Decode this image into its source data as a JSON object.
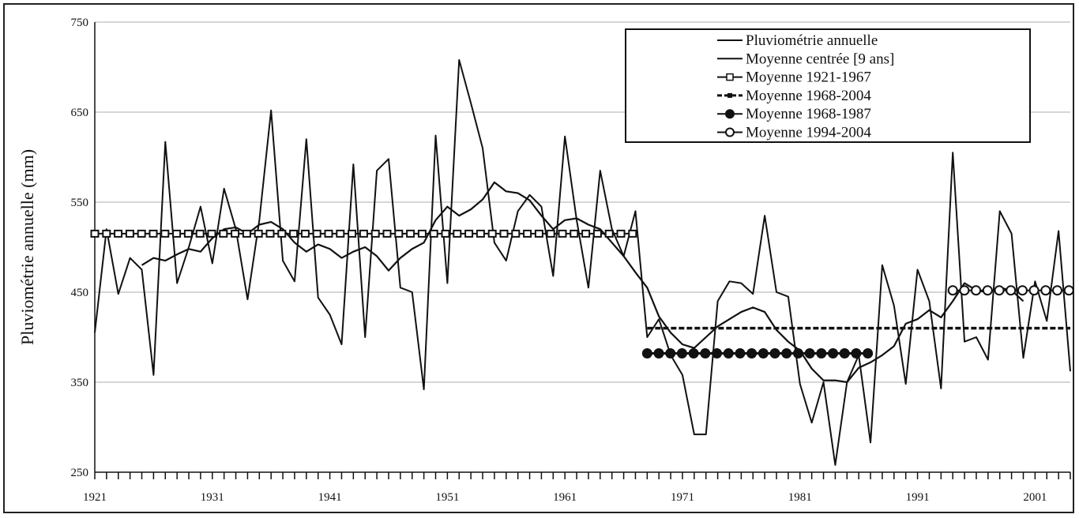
{
  "chart_data": {
    "type": "line",
    "title": "",
    "xlabel": "",
    "ylabel": "Pluviométrie annuelle (mm)",
    "xlim": [
      1921,
      2004
    ],
    "ylim": [
      250,
      750
    ],
    "yticks": [
      250,
      350,
      450,
      550,
      650,
      750
    ],
    "xticks": [
      1921,
      1931,
      1941,
      1951,
      1961,
      1971,
      1981,
      1991,
      2001
    ],
    "grid": "horizontal",
    "legend_position": "top-right",
    "series": [
      {
        "name": "Pluviométrie annuelle",
        "style": "solid-thin",
        "x": [
          1921,
          1922,
          1923,
          1924,
          1925,
          1926,
          1927,
          1928,
          1929,
          1930,
          1931,
          1932,
          1933,
          1934,
          1935,
          1936,
          1937,
          1938,
          1939,
          1940,
          1941,
          1942,
          1943,
          1944,
          1945,
          1946,
          1947,
          1948,
          1949,
          1950,
          1951,
          1952,
          1953,
          1954,
          1955,
          1956,
          1957,
          1958,
          1959,
          1960,
          1961,
          1962,
          1963,
          1964,
          1965,
          1966,
          1967,
          1968,
          1969,
          1970,
          1971,
          1972,
          1973,
          1974,
          1975,
          1976,
          1977,
          1978,
          1979,
          1980,
          1981,
          1982,
          1983,
          1984,
          1985,
          1986,
          1987,
          1988,
          1989,
          1990,
          1991,
          1992,
          1993,
          1994,
          1995,
          1996,
          1997,
          1998,
          1999,
          2000,
          2001,
          2002,
          2003,
          2004
        ],
        "values": [
          405,
          520,
          448,
          488,
          475,
          358,
          617,
          460,
          500,
          545,
          482,
          565,
          520,
          442,
          530,
          652,
          485,
          462,
          620,
          444,
          425,
          392,
          592,
          400,
          585,
          598,
          455,
          450,
          342,
          624,
          460,
          708,
          660,
          610,
          505,
          485,
          540,
          558,
          545,
          468,
          623,
          530,
          455,
          585,
          520,
          490,
          540,
          400,
          420,
          380,
          358,
          292,
          292,
          440,
          462,
          460,
          448,
          535,
          450,
          445,
          348,
          305,
          350,
          258,
          350,
          380,
          283,
          480,
          435,
          348,
          475,
          440,
          343,
          605,
          395,
          400,
          375,
          540,
          515,
          377,
          462,
          418,
          518,
          362
        ]
      },
      {
        "name": "Moyenne centrée [9 ans]",
        "style": "solid",
        "x": [
          1925,
          1926,
          1927,
          1928,
          1929,
          1930,
          1931,
          1932,
          1933,
          1934,
          1935,
          1936,
          1937,
          1938,
          1939,
          1940,
          1941,
          1942,
          1943,
          1944,
          1945,
          1946,
          1947,
          1948,
          1949,
          1950,
          1951,
          1952,
          1953,
          1954,
          1955,
          1956,
          1957,
          1958,
          1959,
          1960,
          1961,
          1962,
          1963,
          1964,
          1965,
          1966,
          1967,
          1968,
          1969,
          1970,
          1971,
          1972,
          1973,
          1974,
          1975,
          1976,
          1977,
          1978,
          1979,
          1980,
          1981,
          1982,
          1983,
          1984,
          1985,
          1986,
          1987,
          1988,
          1989,
          1990,
          1991,
          1992,
          1993,
          1994,
          1995,
          1996,
          1997,
          1998,
          1999,
          2000
        ],
        "values": [
          480,
          488,
          485,
          492,
          498,
          495,
          510,
          520,
          522,
          515,
          525,
          528,
          520,
          505,
          495,
          503,
          498,
          488,
          495,
          500,
          490,
          474,
          488,
          498,
          505,
          530,
          545,
          535,
          542,
          553,
          572,
          562,
          560,
          552,
          535,
          520,
          530,
          532,
          525,
          520,
          505,
          490,
          472,
          455,
          423,
          405,
          392,
          388,
          400,
          412,
          420,
          428,
          433,
          428,
          408,
          395,
          385,
          365,
          352,
          352,
          350,
          366,
          372,
          380,
          390,
          415,
          420,
          430,
          422,
          440,
          460,
          452,
          450,
          455,
          452,
          440
        ]
      },
      {
        "name": "Moyenne 1921-1967",
        "style": "dotted-square",
        "x": [
          1921,
          1967
        ],
        "values": [
          515,
          515
        ]
      },
      {
        "name": "Moyenne 1968-2004",
        "style": "dashed",
        "x": [
          1968,
          2004
        ],
        "values": [
          410,
          410
        ]
      },
      {
        "name": "Moyenne 1968-1987",
        "style": "filled-circle",
        "x": [
          1968,
          1987
        ],
        "values": [
          382,
          382
        ]
      },
      {
        "name": "Moyenne 1994-2004",
        "style": "open-circle",
        "x": [
          1994,
          2004
        ],
        "values": [
          452,
          452
        ]
      }
    ]
  }
}
